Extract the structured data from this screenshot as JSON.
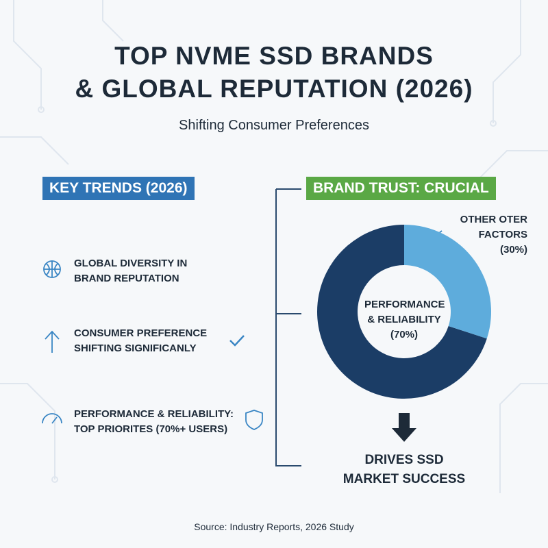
{
  "header": {
    "title": [
      "TOP NVME SSD BRANDS",
      "& GLOBAL REPUTATION (2026)"
    ],
    "subtitle": "Shifting Consumer Preferences"
  },
  "trends": {
    "heading": "KEY TRENDS (2026)",
    "items": [
      [
        "GLOBAL DIVERSITY IN",
        "BRAND REPUTATION"
      ],
      [
        "CONSUMER PREFERENCE",
        "SHIFTING SIGNIFICANLY"
      ],
      [
        "PERFORMANCE & RELIABILITY:",
        "TOP PRIORITES (70%+ USERS)"
      ]
    ]
  },
  "chart_data": {
    "type": "pie",
    "title": "BRAND TRUST: CRUCIAL",
    "categories": [
      "PERFORMANCE & RELIABILITY",
      "OTHER OTER FACTORS"
    ],
    "values": [
      70,
      30
    ],
    "value_labels": [
      "(70%)",
      "(30%)"
    ],
    "colors": [
      "#1b3d66",
      "#5eacdc"
    ],
    "donut": true
  },
  "outcome": [
    "DRIVES SSD",
    "MARKET SUCCESS"
  ],
  "source": "Source: Industry Reports, 2026 Study"
}
